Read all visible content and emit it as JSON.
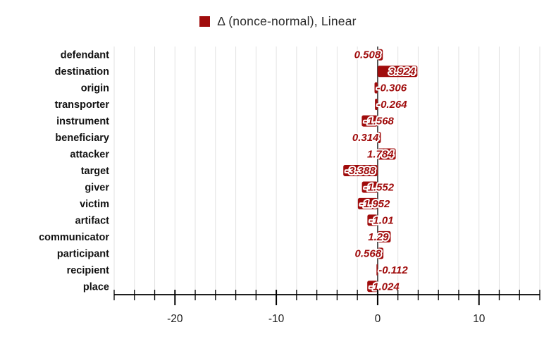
{
  "chart_data": {
    "type": "bar",
    "orientation": "horizontal",
    "legend_label": "Δ (nonce-normal), Linear",
    "legend_position": "top-center",
    "categories": [
      "defendant",
      "destination",
      "origin",
      "transporter",
      "instrument",
      "beneficiary",
      "attacker",
      "target",
      "giver",
      "victim",
      "artifact",
      "communicator",
      "participant",
      "recipient",
      "place"
    ],
    "values": [
      0.508,
      3.924,
      -0.306,
      -0.264,
      -1.568,
      0.314,
      1.784,
      -3.388,
      -1.552,
      -1.952,
      -1.01,
      1.29,
      0.568,
      -0.112,
      -1.024
    ],
    "value_labels": [
      "0.508",
      "3.924",
      "-0.306",
      "-0.264",
      "-1.568",
      "0.314",
      "1.784",
      "-3.388",
      "-1.552",
      "-1.952",
      "-1.01",
      "1.29",
      "0.568",
      "-0.112",
      "-1.024"
    ],
    "xlim": [
      -26,
      16
    ],
    "xticks_major": [
      -20,
      -10,
      0,
      10
    ],
    "xtick_labels": [
      "-20",
      "-10",
      "0",
      "10"
    ],
    "xtick_minor_step": 2,
    "grid": true,
    "colors": {
      "bar": "#A00C0C",
      "value_label": "#A00C0C",
      "gridline": "#e2e2e2",
      "zero_line": "#4d4d4d",
      "axis": "#000000",
      "text": "#111111"
    }
  }
}
